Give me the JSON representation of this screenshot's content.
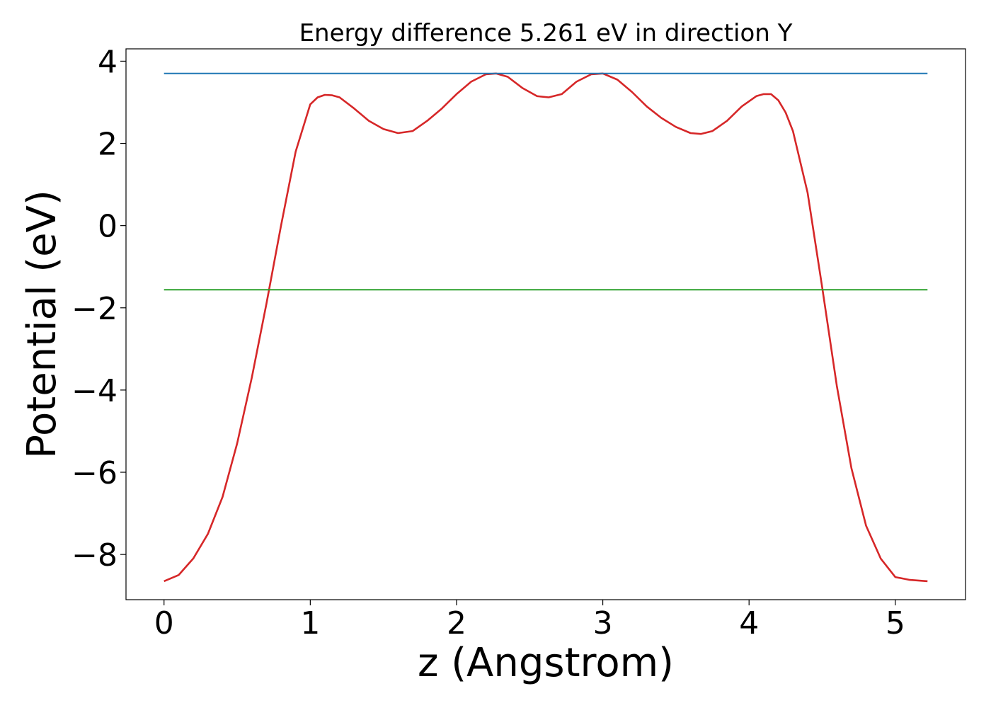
{
  "chart_data": {
    "type": "line",
    "title": "Energy difference 5.261 eV in direction Y",
    "xlabel": "z (Angstrom)",
    "ylabel": "Potential (eV)",
    "xlim": [
      -0.26,
      5.48
    ],
    "ylim": [
      -9.1,
      4.3
    ],
    "xticks": [
      0,
      1,
      2,
      3,
      4,
      5
    ],
    "xtick_labels": [
      "0",
      "1",
      "2",
      "3",
      "4",
      "5"
    ],
    "yticks": [
      4,
      2,
      0,
      -2,
      -4,
      -6,
      -8
    ],
    "ytick_labels": [
      "4",
      "2",
      "0",
      "−2",
      "−4",
      "−6",
      "−8"
    ],
    "grid": false,
    "legend": "none",
    "series": [
      {
        "color": "#d62728",
        "x": [
          0,
          0.1,
          0.2,
          0.3,
          0.4,
          0.5,
          0.6,
          0.7,
          0.8,
          0.9,
          1.0,
          1.05,
          1.1,
          1.15,
          1.2,
          1.3,
          1.4,
          1.5,
          1.6,
          1.7,
          1.8,
          1.9,
          2.0,
          2.1,
          2.2,
          2.27,
          2.35,
          2.45,
          2.55,
          2.63,
          2.72,
          2.82,
          2.92,
          3.0,
          3.1,
          3.2,
          3.3,
          3.4,
          3.5,
          3.6,
          3.67,
          3.75,
          3.85,
          3.95,
          4.05,
          4.1,
          4.15,
          4.2,
          4.25,
          4.3,
          4.4,
          4.5,
          4.6,
          4.7,
          4.8,
          4.9,
          5.0,
          5.1,
          5.22
        ],
        "y": [
          -8.65,
          -8.5,
          -8.1,
          -7.5,
          -6.6,
          -5.3,
          -3.7,
          -1.9,
          0.0,
          1.8,
          2.95,
          3.12,
          3.18,
          3.17,
          3.12,
          2.85,
          2.55,
          2.35,
          2.25,
          2.3,
          2.55,
          2.85,
          3.2,
          3.5,
          3.68,
          3.7,
          3.62,
          3.35,
          3.15,
          3.12,
          3.2,
          3.5,
          3.68,
          3.7,
          3.55,
          3.25,
          2.9,
          2.62,
          2.4,
          2.25,
          2.23,
          2.3,
          2.55,
          2.9,
          3.15,
          3.2,
          3.2,
          3.05,
          2.75,
          2.3,
          0.8,
          -1.5,
          -3.9,
          -5.9,
          -7.3,
          -8.1,
          -8.55,
          -8.62,
          -8.65
        ]
      },
      {
        "color": "#1f77b4",
        "x": [
          0,
          5.22
        ],
        "y": [
          3.7,
          3.7
        ]
      },
      {
        "color": "#2ca02c",
        "x": [
          0,
          5.22
        ],
        "y": [
          -1.56,
          -1.56
        ]
      }
    ]
  }
}
